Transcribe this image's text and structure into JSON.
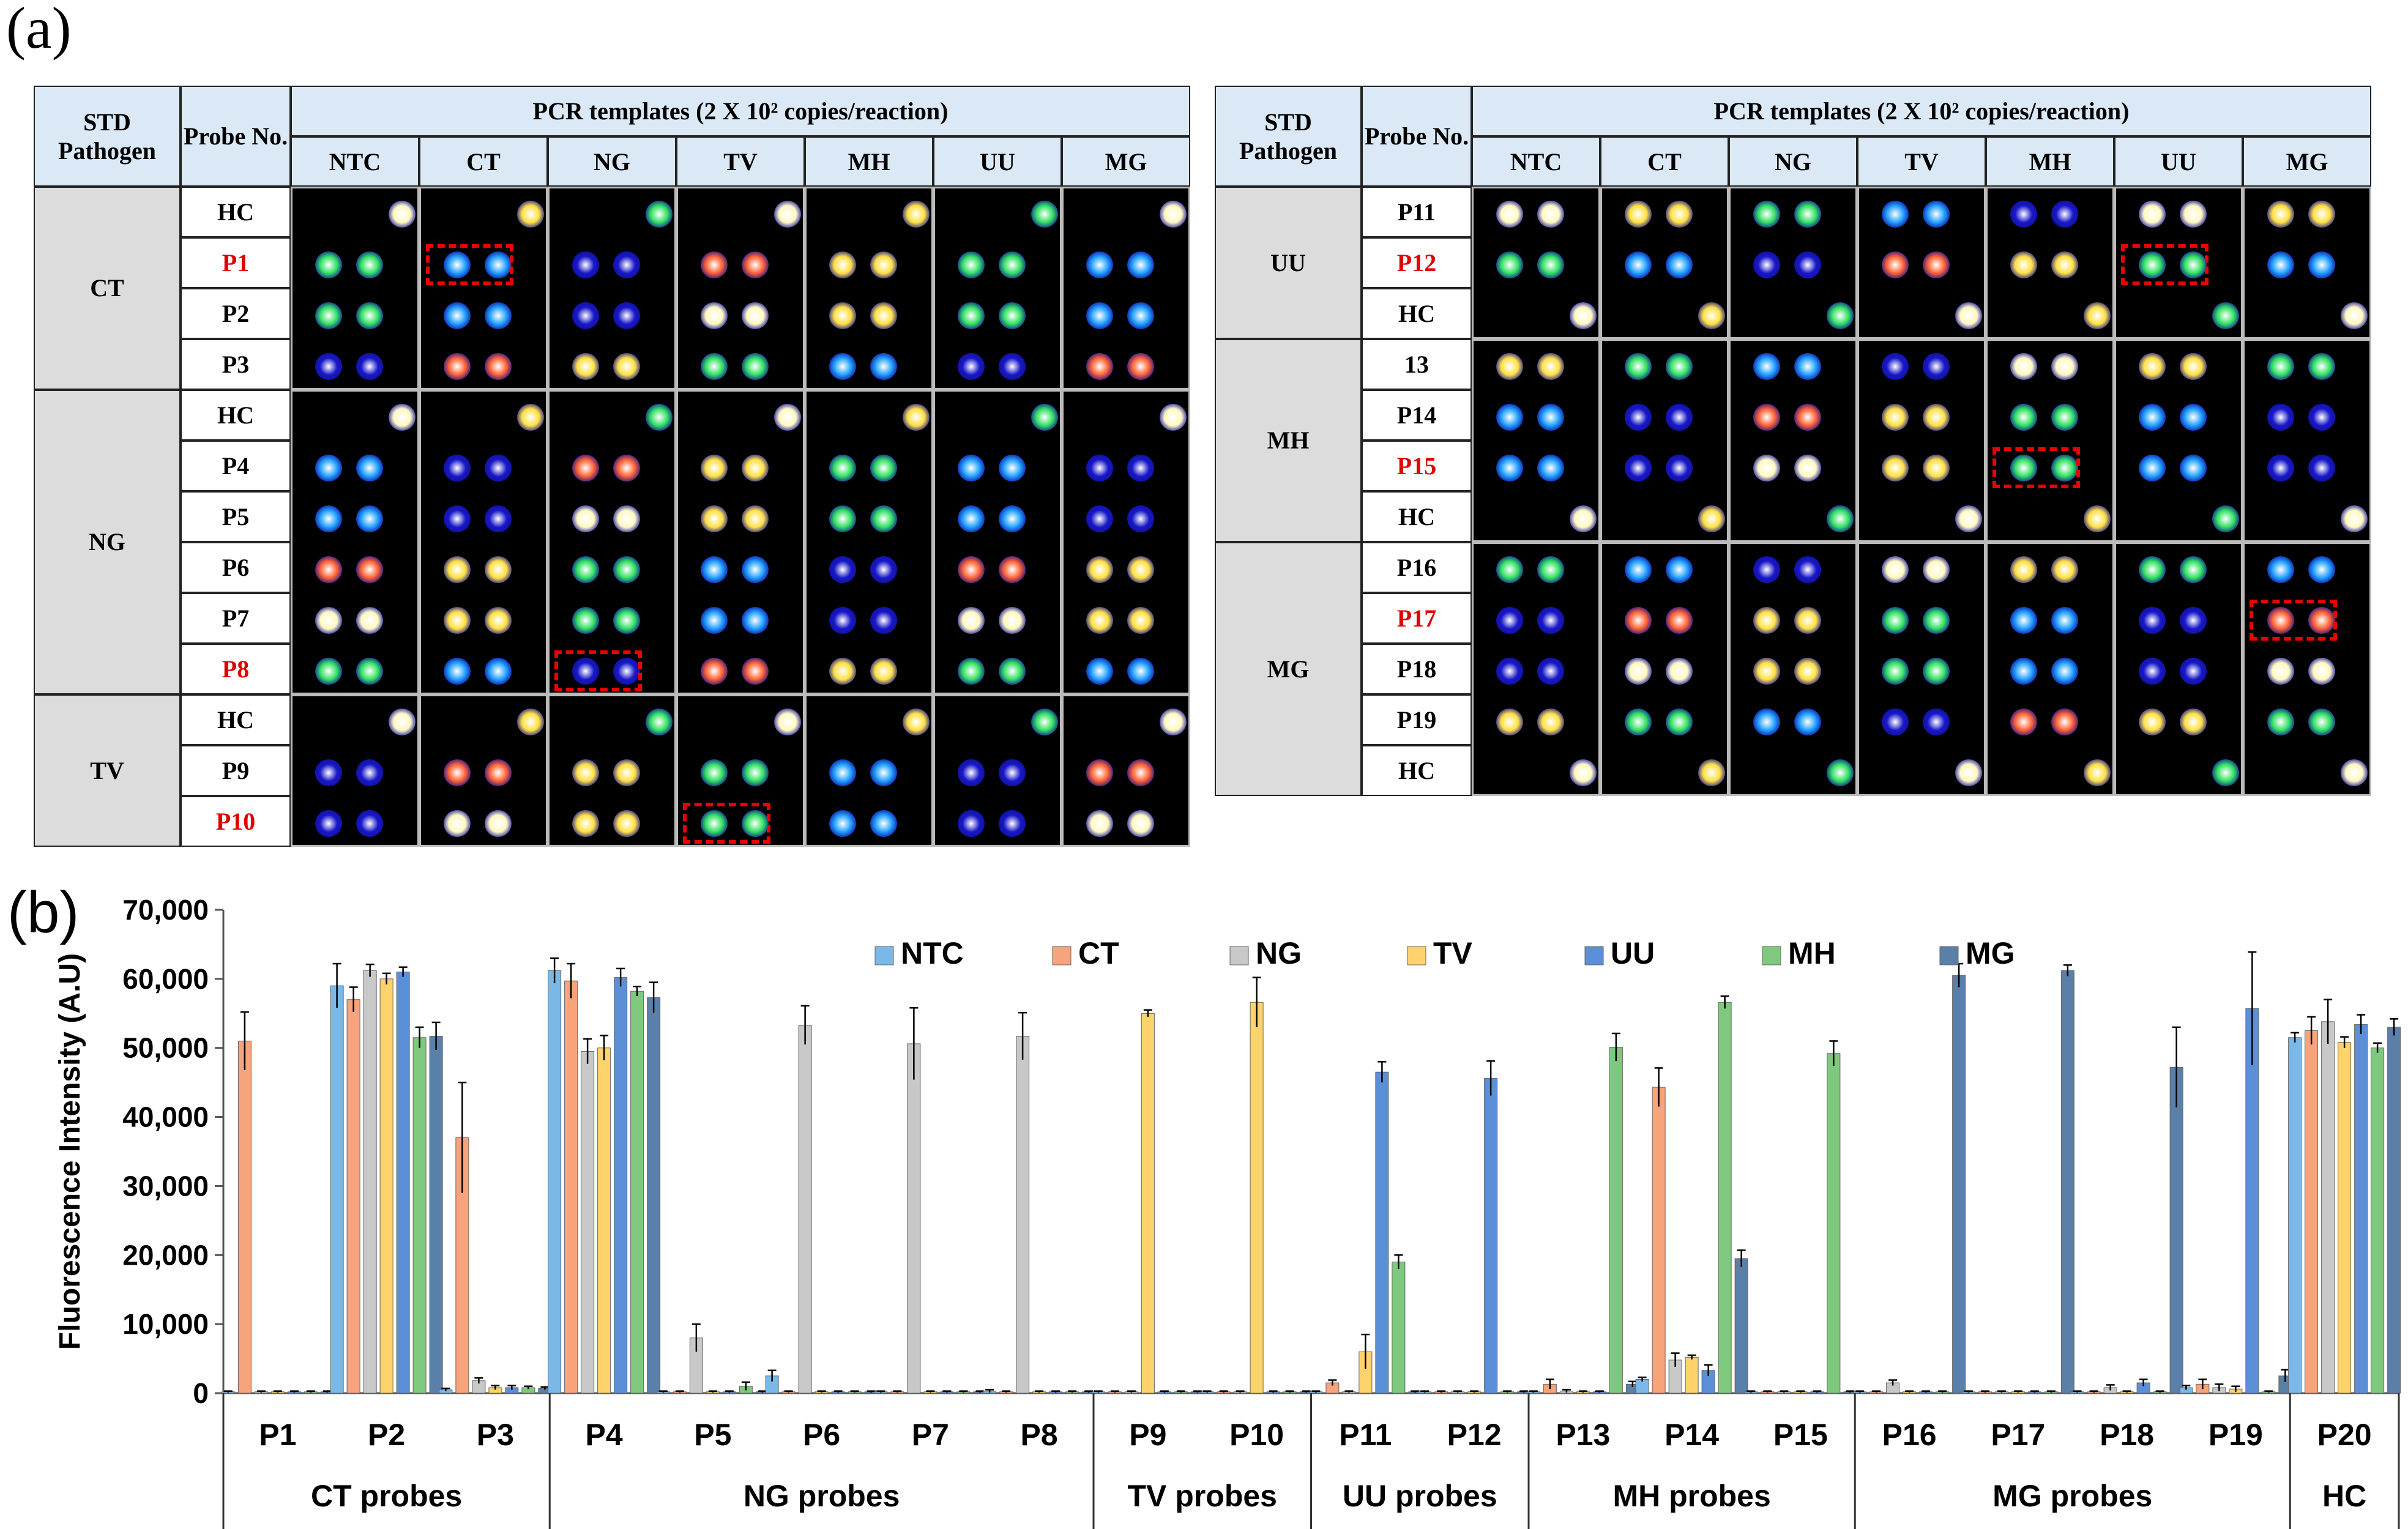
{
  "panel_a": {
    "label": "(a)",
    "header_pathogen": "STD Pathogen",
    "header_probe": "Probe No.",
    "header_pcr": "PCR templates (2 X 10² copies/reaction)",
    "columns": [
      "NTC",
      "CT",
      "NG",
      "TV",
      "MH",
      "UU",
      "MG"
    ],
    "left_groups": [
      {
        "name": "CT",
        "probes": [
          "HC",
          "P1",
          "P2",
          "P3"
        ],
        "highlight": "P1"
      },
      {
        "name": "NG",
        "probes": [
          "HC",
          "P4",
          "P5",
          "P6",
          "P7",
          "P8"
        ],
        "highlight": "P8"
      },
      {
        "name": "TV",
        "probes": [
          "HC",
          "P9",
          "P10"
        ],
        "highlight": "P10"
      }
    ],
    "right_groups": [
      {
        "name": "UU",
        "probes": [
          "P11",
          "P12",
          "HC"
        ],
        "highlight": "P12"
      },
      {
        "name": "MH",
        "probes": [
          "13",
          "P14",
          "P15",
          "HC"
        ],
        "highlight": "P15"
      },
      {
        "name": "MG",
        "probes": [
          "P16",
          "P17",
          "P18",
          "P19",
          "HC"
        ],
        "highlight": "P17"
      }
    ]
  },
  "chart_data": {
    "panel_label": "(b)",
    "type": "bar",
    "ylabel": "Fluorescence Intensity (A.U)",
    "ylim": [
      0,
      70000
    ],
    "yticks": [
      "0",
      "10,000",
      "20,000",
      "30,000",
      "40,000",
      "50,000",
      "60,000",
      "70,000"
    ],
    "categories": [
      "P1",
      "P2",
      "P3",
      "P4",
      "P5",
      "P6",
      "P7",
      "P8",
      "P9",
      "P10",
      "P11",
      "P12",
      "P13",
      "P14",
      "P15",
      "P16",
      "P17",
      "P18",
      "P19",
      "P20"
    ],
    "groups": [
      {
        "label": "CT probes",
        "from": 0,
        "to": 2
      },
      {
        "label": "NG probes",
        "from": 3,
        "to": 7
      },
      {
        "label": "TV probes",
        "from": 8,
        "to": 9
      },
      {
        "label": "UU probes",
        "from": 10,
        "to": 11
      },
      {
        "label": "MH probes",
        "from": 12,
        "to": 14
      },
      {
        "label": "MG probes",
        "from": 15,
        "to": 18
      },
      {
        "label": "HC",
        "from": 19,
        "to": 19
      }
    ],
    "legend_position": "top",
    "series": [
      {
        "name": "NTC",
        "color": "#7ab8e8",
        "values": [
          200,
          59000,
          500,
          61200,
          200,
          2500,
          200,
          300,
          200,
          200,
          200,
          200,
          200,
          2000,
          200,
          200,
          200,
          200,
          800,
          51500
        ],
        "errors": [
          100,
          3200,
          200,
          1800,
          100,
          800,
          100,
          200,
          100,
          100,
          100,
          100,
          100,
          300,
          100,
          100,
          100,
          100,
          300,
          700
        ]
      },
      {
        "name": "CT",
        "color": "#f7a37b",
        "values": [
          51000,
          57000,
          37000,
          59700,
          200,
          200,
          200,
          200,
          200,
          200,
          1500,
          200,
          1300,
          44300,
          200,
          200,
          200,
          200,
          1300,
          52500
        ],
        "errors": [
          4200,
          1800,
          8000,
          2500,
          100,
          100,
          100,
          100,
          100,
          100,
          400,
          100,
          700,
          2800,
          100,
          100,
          100,
          100,
          700,
          2000
        ]
      },
      {
        "name": "NG",
        "color": "#c8c8c8",
        "values": [
          200,
          61200,
          1800,
          49500,
          8000,
          53300,
          50600,
          51700,
          200,
          200,
          200,
          200,
          300,
          4800,
          200,
          1500,
          200,
          800,
          800,
          53800
        ],
        "errors": [
          100,
          900,
          400,
          1800,
          2000,
          2800,
          5200,
          3400,
          100,
          100,
          100,
          100,
          200,
          1000,
          100,
          400,
          100,
          400,
          500,
          3200
        ]
      },
      {
        "name": "TV",
        "color": "#ffd36b",
        "values": [
          200,
          60000,
          800,
          50000,
          200,
          200,
          200,
          200,
          55000,
          56600,
          6000,
          200,
          200,
          5200,
          200,
          200,
          200,
          200,
          600,
          50800
        ],
        "errors": [
          100,
          800,
          300,
          1800,
          100,
          100,
          100,
          100,
          500,
          3600,
          2500,
          100,
          100,
          300,
          100,
          100,
          100,
          100,
          400,
          800
        ]
      },
      {
        "name": "UU",
        "color": "#5b8fd8",
        "values": [
          200,
          61000,
          800,
          60200,
          200,
          200,
          200,
          200,
          200,
          200,
          46500,
          45600,
          200,
          3300,
          200,
          200,
          200,
          1500,
          55700,
          53400
        ],
        "errors": [
          100,
          700,
          300,
          1300,
          100,
          100,
          100,
          100,
          100,
          100,
          1500,
          2500,
          100,
          800,
          100,
          100,
          100,
          500,
          8200,
          1400
        ]
      },
      {
        "name": "MH",
        "color": "#7fc97f",
        "values": [
          200,
          51500,
          800,
          58200,
          1000,
          200,
          200,
          200,
          200,
          200,
          19000,
          200,
          50100,
          56600,
          49200,
          200,
          200,
          200,
          200,
          50000
        ],
        "errors": [
          100,
          1500,
          200,
          700,
          600,
          100,
          100,
          100,
          100,
          100,
          1000,
          100,
          2000,
          900,
          1800,
          100,
          100,
          100,
          100,
          700
        ]
      },
      {
        "name": "MG",
        "color": "#5a7fa8",
        "values": [
          200,
          51700,
          700,
          57300,
          200,
          200,
          200,
          200,
          200,
          200,
          200,
          200,
          1300,
          19500,
          200,
          60500,
          61200,
          47200,
          2500,
          53000
        ],
        "errors": [
          100,
          2000,
          200,
          2200,
          100,
          100,
          100,
          100,
          100,
          100,
          100,
          100,
          400,
          1200,
          100,
          1700,
          800,
          5800,
          900,
          1200
        ]
      }
    ]
  }
}
